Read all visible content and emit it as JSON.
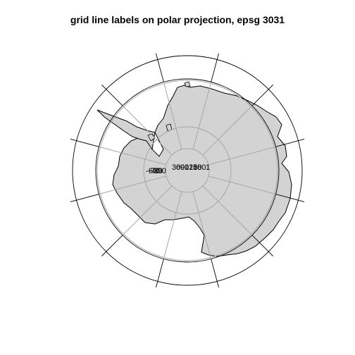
{
  "title": "grid line labels on polar projection, epsg 3031",
  "map": {
    "projection": "epsg 3031",
    "graticule_labels": [
      "-60",
      "-70",
      "-80",
      "-90",
      "30",
      "60",
      "90",
      "120",
      "150",
      "180",
      "1"
    ],
    "colors": {
      "land": "#d3d3d3",
      "coastline": "#000000",
      "graticule_inner": "#a6a6a6",
      "graticule_outer": "#000000",
      "background": "#ffffff"
    }
  }
}
